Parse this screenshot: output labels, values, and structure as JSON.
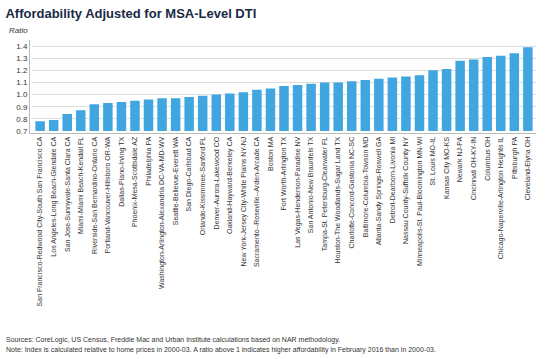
{
  "chart_data": {
    "type": "bar",
    "title": "Affordability Adjusted for MSA-Level DTI",
    "y_label": "Ratio",
    "categories": [
      "San Francisco-Redwood City-South San Francisco CA",
      "Los Angeles-Long Beach-Glendale CA",
      "San Jose-Sunnyvale-Santa Clara CA",
      "Miami-Miami Beach-Kendall FL",
      "Riverside-San Bernardino-Ontario CA",
      "Portland-Vancouver-Hillsboro OR-WA",
      "Dallas-Plano-Irving TX",
      "Phoenix-Mesa-Scottsdale AZ",
      "Philadelphia PA",
      "Washington-Arlington-Alexandria DC-VA-MD-WV",
      "Seattle-Bellevue-Everett WA",
      "San Diego-Carlsbad CA",
      "Orlando-Kissimmee-Sanford FL",
      "Denver-Aurora-Lakewood CO",
      "Oakland-Hayward-Berkeley CA",
      "New York-Jersey City-White Plains NY-NJ",
      "Sacramento--Roseville--Arden-Arcade CA",
      "Boston MA",
      "Fort Worth-Arlington TX",
      "Las Vegas-Henderson-Paradise NV",
      "San Antonio-New Braunfels TX",
      "Tampa-St. Petersburg-Clearwater FL",
      "Houston-The Woodlands-Sugar Land TX",
      "Charlotte-Concord-Gastonia NC-SC",
      "Baltimore-Columbia-Towson MD",
      "Atlanta-Sandy Springs-Roswell GA",
      "Detroit-Dearborn-Livonia MI",
      "Nassau County-Suffolk County NY",
      "Minneapolis-St. Paul-Bloomington MN-WI",
      "St. Louis MO-IL",
      "Kansas City MO-KS",
      "Newark NJ-PA",
      "Cincinnati OH-KY-IN",
      "Columbus OH",
      "Chicago-Naperville-Arlington Heights IL",
      "Pittsburgh PA",
      "Cleveland-Elyria OH"
    ],
    "values": [
      0.78,
      0.79,
      0.84,
      0.87,
      0.92,
      0.93,
      0.94,
      0.95,
      0.96,
      0.97,
      0.97,
      0.98,
      0.99,
      1.0,
      1.01,
      1.02,
      1.04,
      1.05,
      1.07,
      1.08,
      1.09,
      1.1,
      1.1,
      1.11,
      1.12,
      1.13,
      1.14,
      1.15,
      1.16,
      1.2,
      1.21,
      1.28,
      1.29,
      1.31,
      1.32,
      1.34,
      1.39
    ],
    "color": "#41a6e0",
    "ylim": [
      0.7,
      1.45
    ],
    "yticks": [
      0.7,
      0.8,
      0.9,
      {
        "value": 1,
        "label": "1.0"
      },
      1.1,
      1.2,
      1.3,
      1.4
    ],
    "grid": true,
    "notes": [
      "Sources: CoreLogic, US Census, Freddie Mac and Urban Institute calculations based on NAR methodology.",
      "Note: Index is calculated relative to home prices in 2000-03. A ratio above 1 indicates higher affordability in February 2016 than in 2000-03."
    ]
  }
}
